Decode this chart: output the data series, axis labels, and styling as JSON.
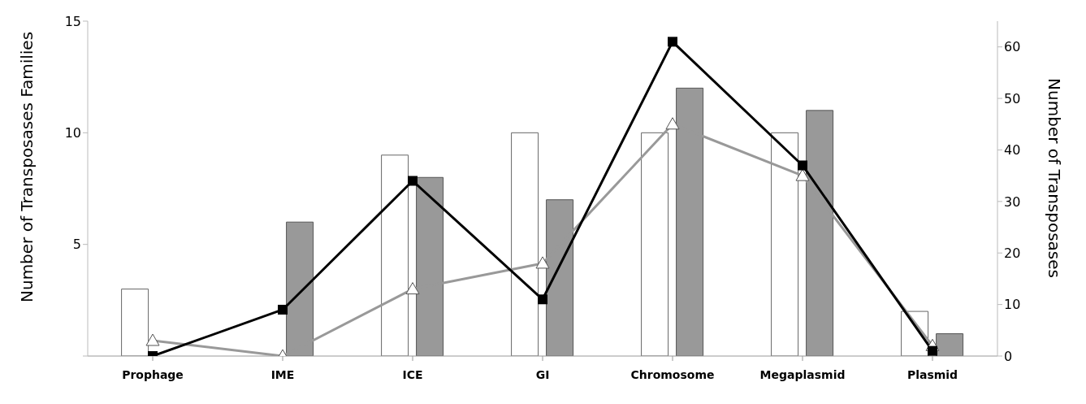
{
  "chart_data": {
    "type": "bar",
    "categories": [
      "Prophage",
      "IME",
      "ICE",
      "GI",
      "Chromosome",
      "Megaplasmid",
      "Plasmid"
    ],
    "ylabel": "Number of  Transposases Families",
    "y2label": "Number of Transposases",
    "ylim": [
      0,
      15
    ],
    "yticks": [
      {
        "value": 0,
        "label": null
      },
      5,
      10,
      15
    ],
    "y2lim": [
      0,
      65
    ],
    "y2ticks": [
      0,
      10,
      20,
      30,
      40,
      50,
      60
    ],
    "grid": false,
    "legend": false,
    "series": [
      {
        "color": "#ffffff",
        "values": [
          3,
          0,
          9,
          10,
          10,
          10,
          2
        ]
      },
      {
        "color": "#999999",
        "values": [
          0,
          6,
          8,
          7,
          12,
          11,
          1
        ]
      },
      {
        "type": "line",
        "axis": "y2",
        "color": "#999999",
        "marker": "triangle",
        "values": [
          3,
          0,
          13,
          18,
          45,
          35,
          2
        ]
      },
      {
        "type": "line",
        "axis": "y2",
        "color": "#000000",
        "marker": "square",
        "values": [
          0,
          9,
          34,
          11,
          61,
          37,
          1
        ]
      }
    ]
  }
}
